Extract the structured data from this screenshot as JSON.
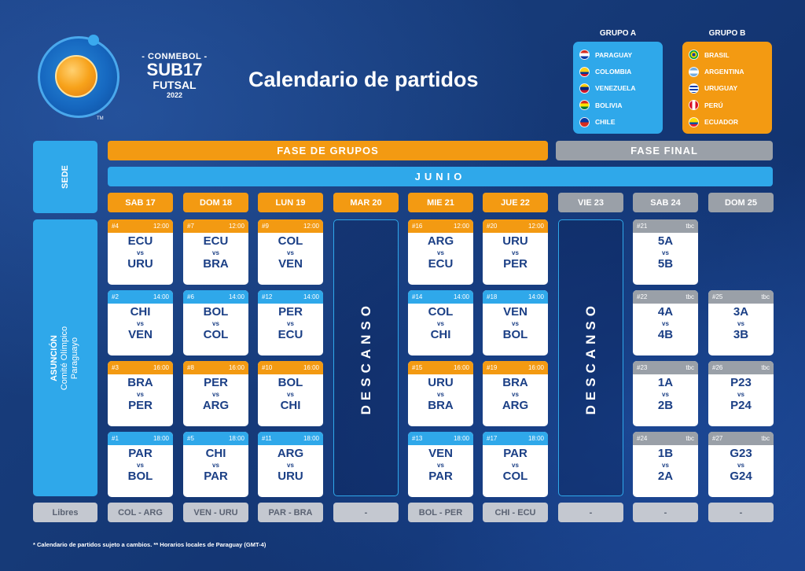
{
  "logo": {
    "conmebol": "- CONMEBOL -",
    "sub17": "SUB17",
    "futsal": "FUTSAL",
    "year": "2022",
    "tm": "TM"
  },
  "title": "Calendario de partidos",
  "groups": {
    "a": {
      "title": "GRUPO A",
      "color": "#2fa8ea",
      "teams": [
        {
          "name": "PARAGUAY",
          "flag": "paraguay-flag"
        },
        {
          "name": "COLOMBIA",
          "flag": "colombia-flag"
        },
        {
          "name": "VENEZUELA",
          "flag": "venezuela-flag"
        },
        {
          "name": "BOLIVIA",
          "flag": "bolivia-flag"
        },
        {
          "name": "CHILE",
          "flag": "chile-flag"
        }
      ]
    },
    "b": {
      "title": "GRUPO B",
      "color": "#f39a12",
      "teams": [
        {
          "name": "BRASIL",
          "flag": "brasil-flag"
        },
        {
          "name": "ARGENTINA",
          "flag": "argentina-flag"
        },
        {
          "name": "URUGUAY",
          "flag": "uruguay-flag"
        },
        {
          "name": "PERÚ",
          "flag": "peru-flag"
        },
        {
          "name": "ECUADOR",
          "flag": "ecuador-flag"
        }
      ]
    }
  },
  "phases": {
    "group": "FASE DE GRUPOS",
    "final": "FASE FINAL",
    "month": "JUNIO"
  },
  "sede": {
    "header": "SEDE",
    "city": "ASUNCIÓN",
    "venue1": "Comité Olímpico",
    "venue2": "Paraguayo"
  },
  "days": [
    "SAB 17",
    "DOM 18",
    "LUN 19",
    "MAR 20",
    "MIE 21",
    "JUE 22",
    "VIE 23",
    "SAB 24",
    "DOM 25"
  ],
  "rest_label": "DESCANSO",
  "matches": {
    "d0": [
      {
        "num": "#4",
        "time": "12:00",
        "home": "ECU",
        "away": "URU",
        "vs": "vs"
      },
      {
        "num": "#2",
        "time": "14:00",
        "home": "CHI",
        "away": "VEN",
        "vs": "vs"
      },
      {
        "num": "#3",
        "time": "16:00",
        "home": "BRA",
        "away": "PER",
        "vs": "vs"
      },
      {
        "num": "#1",
        "time": "18:00",
        "home": "PAR",
        "away": "BOL",
        "vs": "vs"
      }
    ],
    "d1": [
      {
        "num": "#7",
        "time": "12:00",
        "home": "ECU",
        "away": "BRA",
        "vs": "vs"
      },
      {
        "num": "#6",
        "time": "14:00",
        "home": "BOL",
        "away": "COL",
        "vs": "vs"
      },
      {
        "num": "#8",
        "time": "16:00",
        "home": "PER",
        "away": "ARG",
        "vs": "vs"
      },
      {
        "num": "#5",
        "time": "18:00",
        "home": "CHI",
        "away": "PAR",
        "vs": "vs"
      }
    ],
    "d2": [
      {
        "num": "#9",
        "time": "12:00",
        "home": "COL",
        "away": "VEN",
        "vs": "vs"
      },
      {
        "num": "#12",
        "time": "14:00",
        "home": "PER",
        "away": "ECU",
        "vs": "vs"
      },
      {
        "num": "#10",
        "time": "16:00",
        "home": "BOL",
        "away": "CHI",
        "vs": "vs"
      },
      {
        "num": "#11",
        "time": "18:00",
        "home": "ARG",
        "away": "URU",
        "vs": "vs"
      }
    ],
    "d4": [
      {
        "num": "#16",
        "time": "12:00",
        "home": "ARG",
        "away": "ECU",
        "vs": "vs"
      },
      {
        "num": "#14",
        "time": "14:00",
        "home": "COL",
        "away": "CHI",
        "vs": "vs"
      },
      {
        "num": "#15",
        "time": "16:00",
        "home": "URU",
        "away": "BRA",
        "vs": "vs"
      },
      {
        "num": "#13",
        "time": "18:00",
        "home": "VEN",
        "away": "PAR",
        "vs": "vs"
      }
    ],
    "d5": [
      {
        "num": "#20",
        "time": "12:00",
        "home": "URU",
        "away": "PER",
        "vs": "vs"
      },
      {
        "num": "#18",
        "time": "14:00",
        "home": "VEN",
        "away": "BOL",
        "vs": "vs"
      },
      {
        "num": "#19",
        "time": "16:00",
        "home": "BRA",
        "away": "ARG",
        "vs": "vs"
      },
      {
        "num": "#17",
        "time": "18:00",
        "home": "PAR",
        "away": "COL",
        "vs": "vs"
      }
    ],
    "d7": [
      {
        "num": "#21",
        "time": "tbc",
        "home": "5A",
        "away": "5B",
        "vs": "vs"
      },
      {
        "num": "#22",
        "time": "tbc",
        "home": "4A",
        "away": "4B",
        "vs": "vs"
      },
      {
        "num": "#23",
        "time": "tbc",
        "home": "1A",
        "away": "2B",
        "vs": "vs"
      },
      {
        "num": "#24",
        "time": "tbc",
        "home": "1B",
        "away": "2A",
        "vs": "vs"
      }
    ],
    "d8": [
      {
        "num": "#25",
        "time": "tbc",
        "home": "3A",
        "away": "3B",
        "vs": "vs"
      },
      {
        "num": "#26",
        "time": "tbc",
        "home": "P23",
        "away": "P24",
        "vs": "vs"
      },
      {
        "num": "#27",
        "time": "tbc",
        "home": "G23",
        "away": "G24",
        "vs": "vs"
      }
    ]
  },
  "libres": {
    "label": "Libres",
    "values": [
      "COL - ARG",
      "VEN - URU",
      "PAR - BRA",
      "-",
      "BOL - PER",
      "CHI - ECU",
      "-",
      "-",
      "-"
    ]
  },
  "footnote": "* Calendario de partidos sujeto a cambios. ** Horarios locales de Paraguay (GMT-4)",
  "colors": {
    "orange": "#f39a12",
    "blue": "#2fa8ea",
    "gray": "#9aa0a8",
    "background": "#163a78",
    "card_text": "#1b3f85"
  }
}
